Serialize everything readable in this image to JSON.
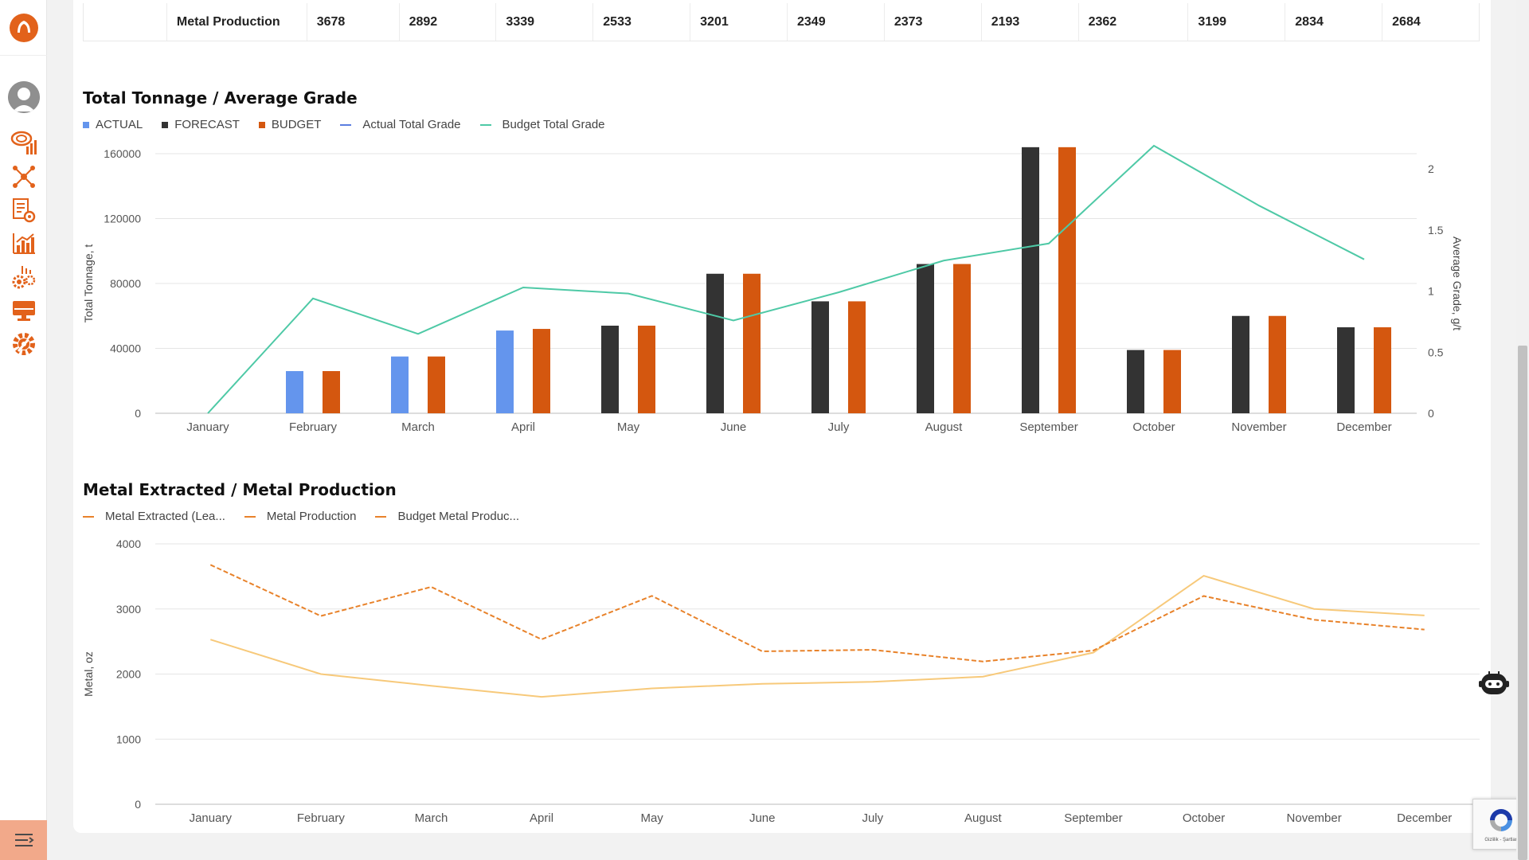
{
  "colors": {
    "brand": "#e2621b",
    "actual": "#6495ed",
    "forecast": "#333333",
    "budget": "#d4570f",
    "grade_actual": "#5b7ee0",
    "grade_budget": "#4ec9a6",
    "metal_extracted": "#f7c97a",
    "metal_production": "#e8822a",
    "budget_metal": "#e8822a"
  },
  "sidebar": {
    "icons": [
      "brand-logo-icon",
      "user-avatar-icon",
      "geology-analytics-icon",
      "network-icon",
      "report-settings-icon",
      "bar-analytics-icon",
      "process-settings-icon",
      "monitor-icon",
      "admin-settings-icon",
      "menu-toggle-icon"
    ]
  },
  "table": {
    "row_label": "Metal Production",
    "values": [
      "3678",
      "2892",
      "3339",
      "2533",
      "3201",
      "2349",
      "2373",
      "2193",
      "2362",
      "3199",
      "2834",
      "2684"
    ]
  },
  "chart_data": [
    {
      "type": "bar",
      "title": "Total Tonnage / Average Grade",
      "legend": [
        {
          "label": "ACTUAL",
          "kind": "square",
          "color": "#6495ed"
        },
        {
          "label": "FORECAST",
          "kind": "square",
          "color": "#333333"
        },
        {
          "label": "BUDGET",
          "kind": "square",
          "color": "#d4570f"
        },
        {
          "label": "Actual Total Grade",
          "kind": "line",
          "color": "#5b7ee0"
        },
        {
          "label": "Budget Total Grade",
          "kind": "line",
          "color": "#4ec9a6"
        }
      ],
      "categories": [
        "January",
        "February",
        "March",
        "April",
        "May",
        "June",
        "July",
        "August",
        "September",
        "October",
        "November",
        "December"
      ],
      "ylabel": "Total Tonnage, t",
      "ylabel_right": "Average Grade, g/t",
      "ylim": [
        0,
        160000
      ],
      "yticks": [
        "0",
        "40000",
        "80000",
        "120000",
        "160000"
      ],
      "ylim_right": [
        0,
        2.125
      ],
      "yticks_right": [
        "0",
        "0.5",
        "1",
        "1.5",
        "2"
      ],
      "series": [
        {
          "name": "ACTUAL",
          "values": [
            0,
            26000,
            35000,
            51000,
            0,
            0,
            0,
            0,
            0,
            0,
            0,
            0
          ]
        },
        {
          "name": "FORECAST",
          "values": [
            0,
            0,
            0,
            0,
            54000,
            86000,
            69000,
            92000,
            164000,
            39000,
            60000,
            53000
          ]
        },
        {
          "name": "BUDGET",
          "values": [
            0,
            26000,
            35000,
            52000,
            54000,
            86000,
            69000,
            92000,
            164000,
            39000,
            60000,
            53000
          ]
        },
        {
          "name": "Budget Total Grade",
          "values": [
            0,
            0.94,
            0.65,
            1.03,
            0.98,
            0.76,
            0.99,
            1.25,
            1.39,
            2.19,
            1.7,
            1.26
          ]
        }
      ],
      "grid": true
    },
    {
      "type": "line",
      "title": "Metal Extracted / Metal Production",
      "legend": [
        {
          "label": "Metal Extracted (Lea...",
          "color": "#e8822a"
        },
        {
          "label": "Metal Production",
          "color": "#e8822a"
        },
        {
          "label": "Budget Metal Produc...",
          "color": "#e8822a"
        }
      ],
      "categories": [
        "January",
        "February",
        "March",
        "April",
        "May",
        "June",
        "July",
        "August",
        "September",
        "October",
        "November",
        "December"
      ],
      "ylabel": "Metal, oz",
      "ylim": [
        0,
        4000
      ],
      "yticks": [
        "0",
        "1000",
        "2000",
        "3000",
        "4000"
      ],
      "series": [
        {
          "name": "Metal Production",
          "style": "dashed",
          "values": [
            3678,
            2892,
            3339,
            2533,
            3201,
            2349,
            2373,
            2193,
            2362,
            3199,
            2834,
            2684
          ]
        },
        {
          "name": "Budget Metal Produc...",
          "style": "solid",
          "values": [
            2530,
            2000,
            1820,
            1650,
            1780,
            1850,
            1880,
            1960,
            2330,
            3510,
            3000,
            2900
          ]
        }
      ],
      "grid": true
    }
  ],
  "recaptcha": {
    "text": "Gizlilik - Şartlar"
  }
}
